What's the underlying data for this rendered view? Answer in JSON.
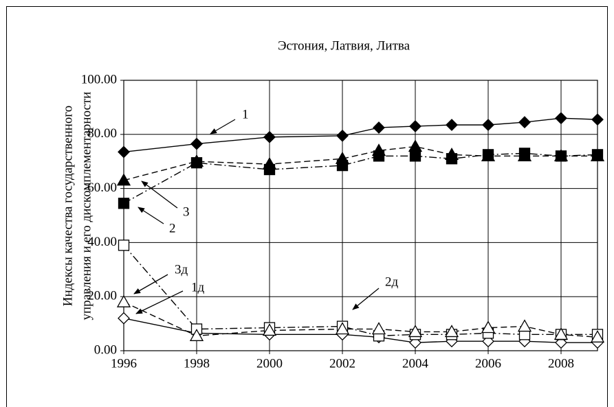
{
  "chart_data": {
    "type": "line",
    "title": "Эстония, Латвия, Литва",
    "ylabel": [
      "Индексы качества государственного",
      "управления и его  дискомплементарности"
    ],
    "x": [
      1996,
      1998,
      2000,
      2002,
      2003,
      2004,
      2005,
      2006,
      2007,
      2008,
      2009
    ],
    "xlim": [
      1996,
      2009
    ],
    "xticks": [
      1996,
      1998,
      2000,
      2002,
      2004,
      2006,
      2008
    ],
    "ylim": [
      0,
      100
    ],
    "yticks": [
      {
        "value": 0,
        "label": "0.00"
      },
      {
        "value": 20,
        "label": "20.00"
      },
      {
        "value": 40,
        "label": "40.00"
      },
      {
        "value": 60,
        "label": "60.00"
      },
      {
        "value": 80,
        "label": "80.00"
      },
      {
        "value": 100,
        "label": "100.00"
      }
    ],
    "grid": true,
    "series": [
      {
        "name": "1",
        "color": "#000000",
        "marker": "diamond",
        "filled": true,
        "line_style": "solid",
        "values": [
          73.5,
          76.5,
          79,
          79.5,
          82.5,
          83,
          83.5,
          83.5,
          84.5,
          86,
          85.5
        ]
      },
      {
        "name": "2",
        "color": "#000000",
        "marker": "square",
        "filled": true,
        "line_style": "dashdot",
        "values": [
          54.5,
          69.5,
          67,
          68.5,
          72,
          72,
          71,
          72.5,
          73,
          72,
          72.5
        ]
      },
      {
        "name": "3",
        "color": "#000000",
        "marker": "triangle",
        "filled": true,
        "line_style": "dashed",
        "values": [
          63,
          70,
          69,
          71,
          74,
          75.5,
          72.5,
          72,
          72,
          72,
          72
        ]
      },
      {
        "name": "1д",
        "color": "#000000",
        "marker": "diamond",
        "filled": false,
        "line_style": "solid",
        "values": [
          12,
          6.5,
          6,
          6,
          5,
          3,
          3.5,
          3.5,
          3.5,
          3,
          3
        ]
      },
      {
        "name": "2д",
        "color": "#000000",
        "marker": "square",
        "filled": false,
        "line_style": "dashdot",
        "values": [
          39,
          8,
          8.5,
          9,
          5.5,
          6,
          6,
          6.5,
          6,
          6,
          6
        ]
      },
      {
        "name": "3д",
        "color": "#000000",
        "marker": "triangle",
        "filled": false,
        "line_style": "dashed",
        "values": [
          18,
          5.5,
          7.5,
          8,
          8,
          7,
          7,
          8.5,
          9,
          6,
          5
        ]
      }
    ]
  }
}
